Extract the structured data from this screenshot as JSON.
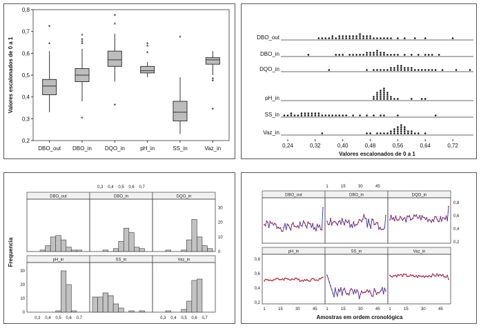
{
  "chart_data": [
    {
      "type": "boxplot",
      "ylabel": "Valores escalonados de 0 a 1",
      "ylim": [
        0.2,
        0.8
      ],
      "y_ticks": [
        "0,2",
        "0,3",
        "0,4",
        "0,5",
        "0,6",
        "0,7",
        "0,8"
      ],
      "categories": [
        "DBO_out",
        "DBO_in",
        "DQO_in",
        "pH_in",
        "SS_in",
        "Vaz_in"
      ],
      "boxes": [
        {
          "name": "DBO_out",
          "min": 0.33,
          "q1": 0.41,
          "median": 0.45,
          "q3": 0.48,
          "max": 0.61,
          "outliers": [
            0.64,
            0.72
          ]
        },
        {
          "name": "DBO_in",
          "min": 0.38,
          "q1": 0.47,
          "median": 0.5,
          "q3": 0.53,
          "max": 0.62,
          "outliers": [
            0.3,
            0.64,
            0.65,
            0.66,
            0.68
          ]
        },
        {
          "name": "DQO_in",
          "min": 0.47,
          "q1": 0.54,
          "median": 0.57,
          "q3": 0.61,
          "max": 0.69,
          "outliers": [
            0.36,
            0.73,
            0.77
          ]
        },
        {
          "name": "pH_in",
          "min": 0.49,
          "q1": 0.51,
          "median": 0.52,
          "q3": 0.54,
          "max": 0.56,
          "outliers": [
            0.6,
            0.63,
            0.64
          ]
        },
        {
          "name": "SS_in",
          "min": 0.23,
          "q1": 0.29,
          "median": 0.33,
          "q3": 0.38,
          "max": 0.49,
          "outliers": [
            0.67
          ]
        },
        {
          "name": "Vaz_in",
          "min": 0.5,
          "q1": 0.55,
          "median": 0.57,
          "q3": 0.58,
          "max": 0.61,
          "outliers": [
            0.34,
            0.47,
            0.48
          ]
        }
      ]
    },
    {
      "type": "dotplot",
      "xlabel": "Valores escalonados de 0 a 1",
      "xlim": [
        0.22,
        0.78
      ],
      "x_ticks": [
        "0,24",
        "0,32",
        "0,40",
        "0,48",
        "0,56",
        "0,64",
        "0,72"
      ],
      "series": [
        {
          "name": "DBO_out",
          "values": [
            0.33,
            0.34,
            0.35,
            0.36,
            0.37,
            0.37,
            0.38,
            0.39,
            0.39,
            0.4,
            0.4,
            0.41,
            0.41,
            0.42,
            0.42,
            0.43,
            0.43,
            0.44,
            0.44,
            0.45,
            0.45,
            0.45,
            0.46,
            0.46,
            0.47,
            0.47,
            0.48,
            0.48,
            0.49,
            0.5,
            0.51,
            0.52,
            0.53,
            0.54,
            0.56,
            0.58,
            0.61,
            0.64,
            0.72
          ]
        },
        {
          "name": "DBO_in",
          "values": [
            0.3,
            0.38,
            0.39,
            0.4,
            0.42,
            0.43,
            0.44,
            0.45,
            0.46,
            0.47,
            0.47,
            0.48,
            0.48,
            0.49,
            0.49,
            0.5,
            0.5,
            0.5,
            0.51,
            0.51,
            0.52,
            0.52,
            0.53,
            0.54,
            0.55,
            0.56,
            0.58,
            0.6,
            0.62,
            0.64,
            0.65,
            0.66,
            0.68
          ]
        },
        {
          "name": "DQO_in",
          "values": [
            0.36,
            0.47,
            0.49,
            0.5,
            0.51,
            0.52,
            0.53,
            0.54,
            0.54,
            0.55,
            0.55,
            0.56,
            0.56,
            0.56,
            0.57,
            0.57,
            0.57,
            0.58,
            0.58,
            0.59,
            0.59,
            0.6,
            0.6,
            0.61,
            0.62,
            0.63,
            0.64,
            0.65,
            0.66,
            0.67,
            0.69,
            0.73,
            0.77
          ]
        },
        {
          "name": "pH_in",
          "values": [
            0.49,
            0.49,
            0.5,
            0.5,
            0.5,
            0.5,
            0.51,
            0.51,
            0.51,
            0.51,
            0.51,
            0.52,
            0.52,
            0.52,
            0.52,
            0.52,
            0.52,
            0.53,
            0.53,
            0.53,
            0.53,
            0.54,
            0.54,
            0.55,
            0.56,
            0.6,
            0.63,
            0.64
          ]
        },
        {
          "name": "SS_in",
          "values": [
            0.23,
            0.24,
            0.25,
            0.25,
            0.26,
            0.27,
            0.28,
            0.28,
            0.29,
            0.29,
            0.3,
            0.3,
            0.31,
            0.31,
            0.32,
            0.32,
            0.33,
            0.33,
            0.34,
            0.35,
            0.36,
            0.37,
            0.38,
            0.39,
            0.4,
            0.41,
            0.43,
            0.45,
            0.47,
            0.49,
            0.51,
            0.52,
            0.56,
            0.67
          ]
        },
        {
          "name": "Vaz_in",
          "values": [
            0.34,
            0.47,
            0.48,
            0.5,
            0.51,
            0.52,
            0.53,
            0.54,
            0.54,
            0.55,
            0.55,
            0.55,
            0.56,
            0.56,
            0.56,
            0.56,
            0.57,
            0.57,
            0.57,
            0.57,
            0.57,
            0.58,
            0.58,
            0.58,
            0.58,
            0.59,
            0.59,
            0.6,
            0.6,
            0.61,
            0.62,
            0.64
          ]
        }
      ]
    },
    {
      "type": "histogram",
      "ylabel": "Frequencia",
      "x_ticks": [
        "0,3",
        "0,4",
        "0,5",
        "0,6",
        "0,7"
      ],
      "y_ticks_top": [
        "0",
        "10",
        "20",
        "30"
      ],
      "y_ticks_bottom": [
        "0",
        "10",
        "20",
        "30"
      ],
      "bins": [
        0.225,
        0.275,
        0.325,
        0.375,
        0.425,
        0.475,
        0.525,
        0.575,
        0.625,
        0.675,
        0.725
      ],
      "panels": [
        {
          "name": "DBO_out",
          "counts": [
            0,
            0,
            1,
            4,
            10,
            11,
            8,
            3,
            1,
            1,
            0
          ]
        },
        {
          "name": "DBO_in",
          "counts": [
            0,
            0,
            1,
            0,
            2,
            7,
            16,
            13,
            3,
            2,
            0
          ]
        },
        {
          "name": "DQO_in",
          "counts": [
            0,
            0,
            1,
            0,
            0,
            1,
            8,
            22,
            10,
            4,
            2
          ]
        },
        {
          "name": "pH_in",
          "counts": [
            0,
            0,
            0,
            0,
            0,
            1,
            30,
            20,
            1,
            0,
            0
          ]
        },
        {
          "name": "SS_in",
          "counts": [
            11,
            11,
            14,
            12,
            6,
            3,
            0,
            1,
            0,
            1,
            0
          ]
        },
        {
          "name": "Vaz_in",
          "counts": [
            0,
            0,
            1,
            0,
            0,
            2,
            8,
            23,
            24,
            0,
            0
          ]
        }
      ]
    },
    {
      "type": "line",
      "xlabel": "Amostras em ordem cronológica",
      "x_ticks": [
        "1",
        "15",
        "30",
        "45"
      ],
      "y_ticks": [
        "0,2",
        "0,4",
        "0,6",
        "0,8"
      ],
      "panels": [
        {
          "name": "DBO_out"
        },
        {
          "name": "DBO_in"
        },
        {
          "name": "DQO_in"
        },
        {
          "name": "pH_in"
        },
        {
          "name": "SS_in"
        },
        {
          "name": "Vaz_in"
        }
      ]
    }
  ]
}
